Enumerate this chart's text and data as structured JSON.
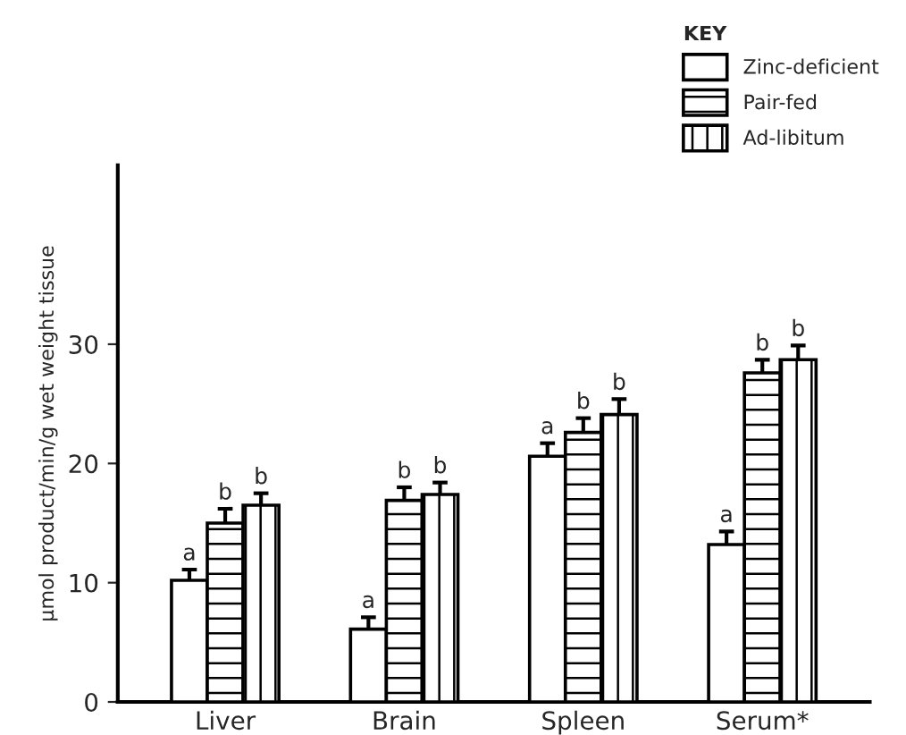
{
  "chart_data": {
    "type": "bar",
    "ylabel": "μmol product/min/g wet weight tissue",
    "legend_title": "KEY",
    "categories": [
      "Liver",
      "Brain",
      "Spleen",
      "Serum*"
    ],
    "series": [
      {
        "name": "Zinc-deficient",
        "color": "#ffffff",
        "values": [
          10.2,
          6.1,
          20.6,
          13.2
        ],
        "errors": [
          0.9,
          1.0,
          1.1,
          1.1
        ],
        "value_labels": [
          "a",
          "a",
          "a",
          "a"
        ]
      },
      {
        "name": "Pair-fed",
        "color": "#ffffff",
        "values": [
          15.0,
          16.9,
          22.6,
          27.6
        ],
        "errors": [
          1.2,
          1.1,
          1.2,
          1.1
        ],
        "value_labels": [
          "b",
          "b",
          "b",
          "b"
        ]
      },
      {
        "name": "Ad-libitum",
        "color": "#ffffff",
        "values": [
          16.5,
          17.4,
          24.1,
          28.7
        ],
        "errors": [
          1.0,
          1.0,
          1.3,
          1.2
        ],
        "value_labels": [
          "b",
          "b",
          "b",
          "b"
        ]
      }
    ],
    "ylim": [
      0,
      45
    ],
    "yticks": [
      0,
      10,
      20,
      30
    ],
    "grid": false,
    "legend": "top right"
  }
}
